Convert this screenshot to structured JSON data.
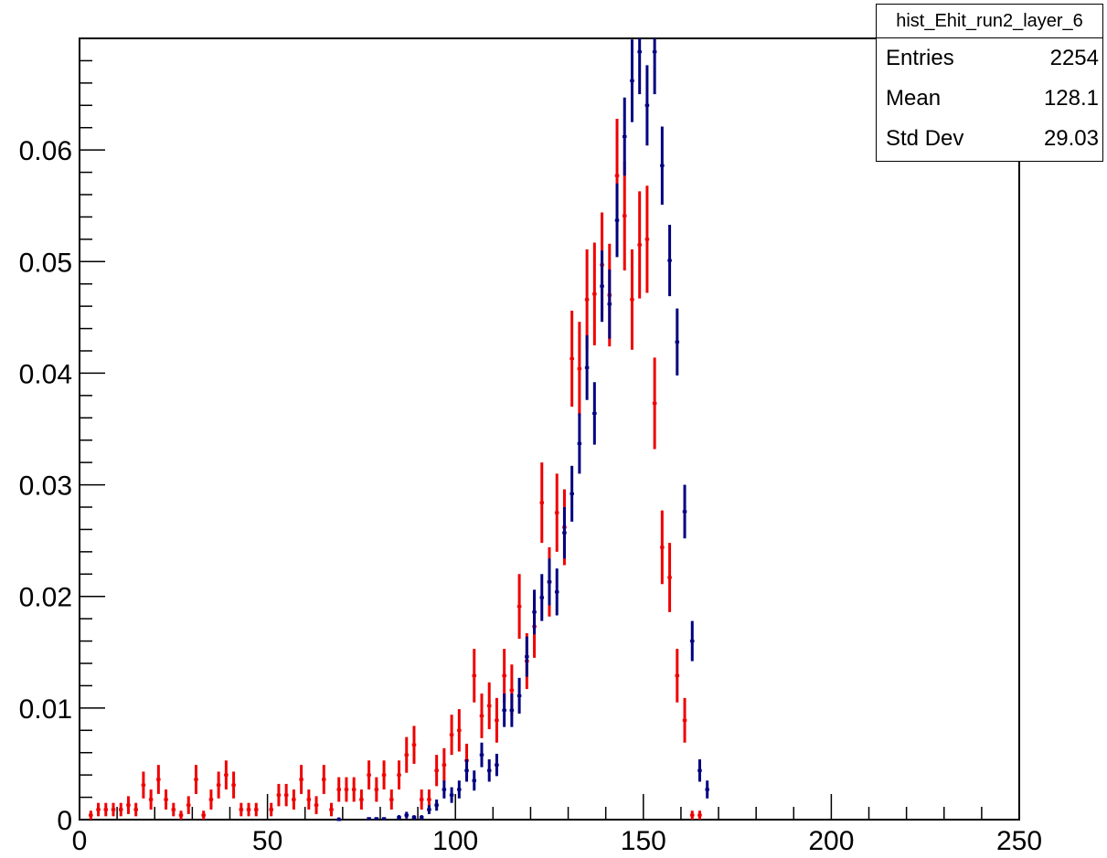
{
  "stats": {
    "title": "hist_Ehit_run2_layer_6",
    "rows": [
      {
        "label": "Entries",
        "value": "2254"
      },
      {
        "label": "Mean",
        "value": "128.1"
      },
      {
        "label": "Std Dev",
        "value": "29.03"
      }
    ]
  },
  "colors": {
    "red": "#ee0000",
    "blue": "#000080",
    "axis": "#000000"
  },
  "chart_data": {
    "type": "scatter",
    "title": "",
    "xlabel": "",
    "ylabel": "",
    "xlim": [
      0,
      250
    ],
    "ylim": [
      0,
      0.07
    ],
    "x_ticks": [
      "0",
      "50",
      "100",
      "150",
      "200",
      "250"
    ],
    "y_ticks": [
      "0",
      "0.01",
      "0.02",
      "0.03",
      "0.04",
      "0.05",
      "0.06"
    ],
    "grid": false,
    "bin_width": 2,
    "series": [
      {
        "color": "red",
        "points": [
          [
            3,
            0.0004,
            0.0004
          ],
          [
            5,
            0.0009,
            0.0006
          ],
          [
            7,
            0.0009,
            0.0006
          ],
          [
            9,
            0.0009,
            0.0006
          ],
          [
            11,
            0.0009,
            0.0006
          ],
          [
            13,
            0.0013,
            0.0008
          ],
          [
            15,
            0.0009,
            0.0006
          ],
          [
            17,
            0.0031,
            0.0012
          ],
          [
            19,
            0.0018,
            0.0009
          ],
          [
            21,
            0.0036,
            0.0013
          ],
          [
            23,
            0.0018,
            0.0009
          ],
          [
            25,
            0.0009,
            0.0006
          ],
          [
            27,
            0.0004,
            0.0004
          ],
          [
            29,
            0.0013,
            0.0008
          ],
          [
            31,
            0.0036,
            0.0013
          ],
          [
            33,
            0.0004,
            0.0004
          ],
          [
            35,
            0.0018,
            0.0009
          ],
          [
            37,
            0.0031,
            0.0012
          ],
          [
            39,
            0.004,
            0.0013
          ],
          [
            41,
            0.0031,
            0.0012
          ],
          [
            43,
            0.0009,
            0.0006
          ],
          [
            45,
            0.0009,
            0.0006
          ],
          [
            47,
            0.0009,
            0.0006
          ],
          [
            51,
            0.0009,
            0.0006
          ],
          [
            53,
            0.0022,
            0.001
          ],
          [
            55,
            0.0022,
            0.001
          ],
          [
            57,
            0.0018,
            0.0009
          ],
          [
            59,
            0.0036,
            0.0013
          ],
          [
            61,
            0.0018,
            0.0009
          ],
          [
            63,
            0.0013,
            0.0008
          ],
          [
            65,
            0.0036,
            0.0013
          ],
          [
            67,
            0.0009,
            0.0006
          ],
          [
            69,
            0.0027,
            0.0011
          ],
          [
            71,
            0.0027,
            0.0011
          ],
          [
            73,
            0.0027,
            0.0011
          ],
          [
            75,
            0.0018,
            0.0009
          ],
          [
            77,
            0.004,
            0.0013
          ],
          [
            79,
            0.0027,
            0.0011
          ],
          [
            81,
            0.004,
            0.0013
          ],
          [
            83,
            0.0018,
            0.0009
          ],
          [
            85,
            0.004,
            0.0013
          ],
          [
            87,
            0.0058,
            0.0016
          ],
          [
            89,
            0.0067,
            0.0017
          ],
          [
            91,
            0.0018,
            0.0009
          ],
          [
            93,
            0.0018,
            0.0009
          ],
          [
            95,
            0.0044,
            0.0014
          ],
          [
            97,
            0.0049,
            0.0015
          ],
          [
            99,
            0.0076,
            0.0018
          ],
          [
            101,
            0.008,
            0.0019
          ],
          [
            103,
            0.0053,
            0.0015
          ],
          [
            105,
            0.0129,
            0.0024
          ],
          [
            107,
            0.0093,
            0.002
          ],
          [
            109,
            0.0102,
            0.0021
          ],
          [
            111,
            0.0089,
            0.002
          ],
          [
            113,
            0.0129,
            0.0024
          ],
          [
            115,
            0.0116,
            0.0023
          ],
          [
            117,
            0.0191,
            0.0029
          ],
          [
            119,
            0.0142,
            0.0025
          ],
          [
            121,
            0.0173,
            0.0028
          ],
          [
            123,
            0.0284,
            0.0036
          ],
          [
            125,
            0.0213,
            0.0031
          ],
          [
            127,
            0.0275,
            0.0035
          ],
          [
            129,
            0.0262,
            0.0034
          ],
          [
            131,
            0.0413,
            0.0043
          ],
          [
            133,
            0.0404,
            0.0042
          ],
          [
            135,
            0.0466,
            0.0045
          ],
          [
            137,
            0.0471,
            0.0046
          ],
          [
            139,
            0.0497,
            0.0047
          ],
          [
            141,
            0.047,
            0.0046
          ],
          [
            143,
            0.0577,
            0.0051
          ],
          [
            145,
            0.0541,
            0.0049
          ],
          [
            147,
            0.0466,
            0.0045
          ],
          [
            149,
            0.0515,
            0.0048
          ],
          [
            151,
            0.052,
            0.0048
          ],
          [
            153,
            0.0373,
            0.0041
          ],
          [
            155,
            0.0244,
            0.0033
          ],
          [
            157,
            0.0217,
            0.0031
          ],
          [
            159,
            0.0129,
            0.0024
          ],
          [
            161,
            0.0089,
            0.002
          ],
          [
            163,
            0.0004,
            0.0004
          ],
          [
            165,
            0.0004,
            0.0004
          ]
        ]
      },
      {
        "color": "blue",
        "points": [
          [
            69,
            0.0,
            0.0002
          ],
          [
            77,
            0.0001,
            0.0001
          ],
          [
            79,
            0.0001,
            0.0001
          ],
          [
            81,
            0.0001,
            0.0001
          ],
          [
            85,
            0.0002,
            0.0002
          ],
          [
            87,
            0.0004,
            0.0003
          ],
          [
            89,
            0.0002,
            0.0002
          ],
          [
            91,
            0.0002,
            0.0002
          ],
          [
            93,
            0.0009,
            0.0004
          ],
          [
            95,
            0.0013,
            0.0005
          ],
          [
            97,
            0.0027,
            0.0008
          ],
          [
            99,
            0.0022,
            0.0007
          ],
          [
            101,
            0.0027,
            0.0008
          ],
          [
            103,
            0.0044,
            0.001
          ],
          [
            105,
            0.0035,
            0.0009
          ],
          [
            107,
            0.0058,
            0.0011
          ],
          [
            109,
            0.0044,
            0.001
          ],
          [
            111,
            0.0049,
            0.001
          ],
          [
            113,
            0.0098,
            0.0015
          ],
          [
            115,
            0.0098,
            0.0015
          ],
          [
            117,
            0.0111,
            0.0016
          ],
          [
            119,
            0.0146,
            0.0018
          ],
          [
            121,
            0.0186,
            0.002
          ],
          [
            123,
            0.0199,
            0.0021
          ],
          [
            125,
            0.0213,
            0.0021
          ],
          [
            127,
            0.0204,
            0.0021
          ],
          [
            129,
            0.0257,
            0.0023
          ],
          [
            131,
            0.0292,
            0.0025
          ],
          [
            133,
            0.0337,
            0.0027
          ],
          [
            135,
            0.0405,
            0.0029
          ],
          [
            137,
            0.0364,
            0.0028
          ],
          [
            139,
            0.0478,
            0.0032
          ],
          [
            141,
            0.0462,
            0.0031
          ],
          [
            143,
            0.0537,
            0.0033
          ],
          [
            145,
            0.0612,
            0.0035
          ],
          [
            147,
            0.0662,
            0.0037
          ],
          [
            149,
            0.0688,
            0.0038
          ],
          [
            151,
            0.064,
            0.0036
          ],
          [
            153,
            0.0688,
            0.0038
          ],
          [
            155,
            0.0586,
            0.0035
          ],
          [
            157,
            0.0501,
            0.0032
          ],
          [
            159,
            0.0428,
            0.003
          ],
          [
            161,
            0.0276,
            0.0024
          ],
          [
            163,
            0.016,
            0.0018
          ],
          [
            165,
            0.0044,
            0.001
          ],
          [
            167,
            0.0027,
            0.0008
          ]
        ]
      }
    ]
  }
}
